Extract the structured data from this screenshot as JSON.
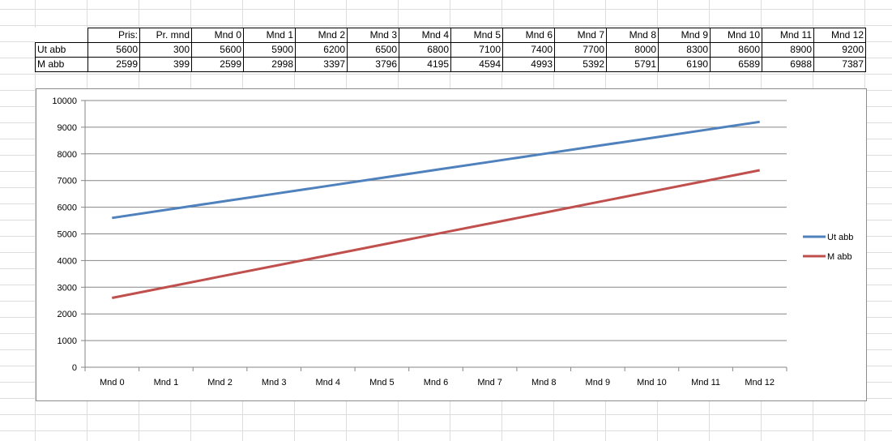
{
  "table": {
    "headers": [
      "",
      "Pris:",
      "Pr. mnd",
      "Mnd 0",
      "Mnd 1",
      "Mnd 2",
      "Mnd 3",
      "Mnd 4",
      "Mnd 5",
      "Mnd 6",
      "Mnd 7",
      "Mnd 8",
      "Mnd 9",
      "Mnd 10",
      "Mnd 11",
      "Mnd 12"
    ],
    "rows": [
      {
        "label": "Ut abb",
        "cells": [
          "5600",
          "300",
          "5600",
          "5900",
          "6200",
          "6500",
          "6800",
          "7100",
          "7400",
          "7700",
          "8000",
          "8300",
          "8600",
          "8900",
          "9200"
        ]
      },
      {
        "label": "M abb",
        "cells": [
          "2599",
          "399",
          "2599",
          "2998",
          "3397",
          "3796",
          "4195",
          "4594",
          "4993",
          "5392",
          "5791",
          "6190",
          "6589",
          "6988",
          "7387"
        ]
      }
    ]
  },
  "chart_data": {
    "type": "line",
    "categories": [
      "Mnd 0",
      "Mnd 1",
      "Mnd 2",
      "Mnd 3",
      "Mnd 4",
      "Mnd 5",
      "Mnd 6",
      "Mnd 7",
      "Mnd 8",
      "Mnd 9",
      "Mnd 10",
      "Mnd 11",
      "Mnd 12"
    ],
    "series": [
      {
        "name": "Ut abb",
        "color": "#4f81bd",
        "values": [
          5600,
          5900,
          6200,
          6500,
          6800,
          7100,
          7400,
          7700,
          8000,
          8300,
          8600,
          8900,
          9200
        ]
      },
      {
        "name": "M abb",
        "color": "#c0504d",
        "values": [
          2599,
          2998,
          3397,
          3796,
          4195,
          4594,
          4993,
          5392,
          5791,
          6190,
          6589,
          6988,
          7387
        ]
      }
    ],
    "ylim": [
      0,
      10000
    ],
    "yticks": [
      "0",
      "1000",
      "2000",
      "3000",
      "4000",
      "5000",
      "6000",
      "7000",
      "8000",
      "9000",
      "10000"
    ],
    "grid": true,
    "legend": "right"
  }
}
